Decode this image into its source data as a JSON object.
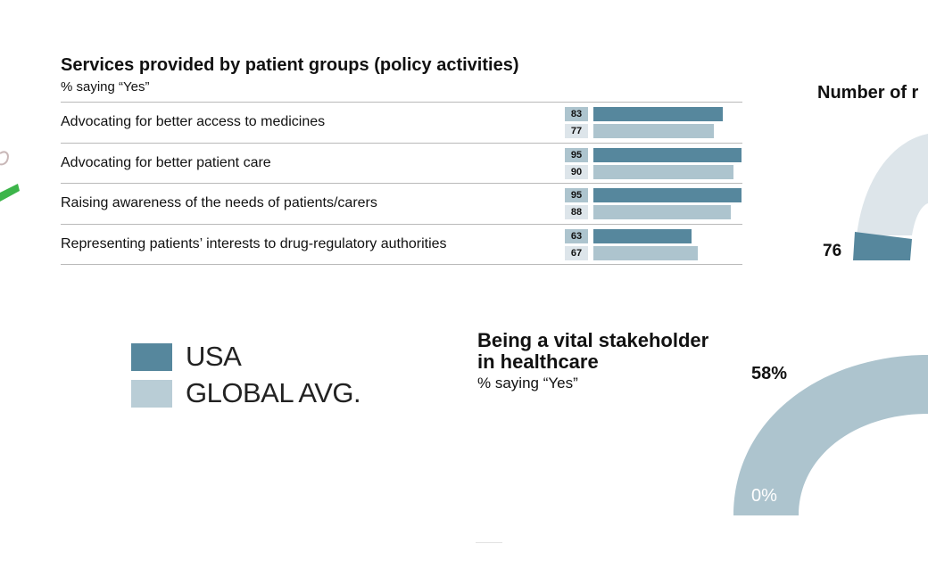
{
  "colors": {
    "usa": "#56879d",
    "global": "#adc4ce",
    "pale": "#dde5ea",
    "green": "#3db54a",
    "value_label_text_light": "#ffffff"
  },
  "chart_data": [
    {
      "type": "bar",
      "title": "Services provided by patient groups (policy activities)",
      "subtitle": "% saying “Yes”",
      "categories": [
        "Advocating for better access to medicines",
        "Advocating for better patient care",
        "Raising awareness of the needs of patients/carers",
        "Representing patients’ interests to drug-regulatory authorities"
      ],
      "series": [
        {
          "name": "USA",
          "values": [
            83,
            95,
            95,
            63
          ]
        },
        {
          "name": "GLOBAL AVG.",
          "values": [
            77,
            90,
            88,
            67
          ]
        }
      ],
      "xlim": [
        0,
        95
      ],
      "orientation": "horizontal",
      "legend": "bottom-left"
    },
    {
      "type": "pie",
      "title": "Number of r",
      "labels": [
        "76"
      ]
    },
    {
      "type": "pie",
      "title": "Being a vital stakeholder in healthcare",
      "subtitle": "% saying “Yes”",
      "labels": [
        "58%",
        "0%"
      ]
    }
  ]
}
